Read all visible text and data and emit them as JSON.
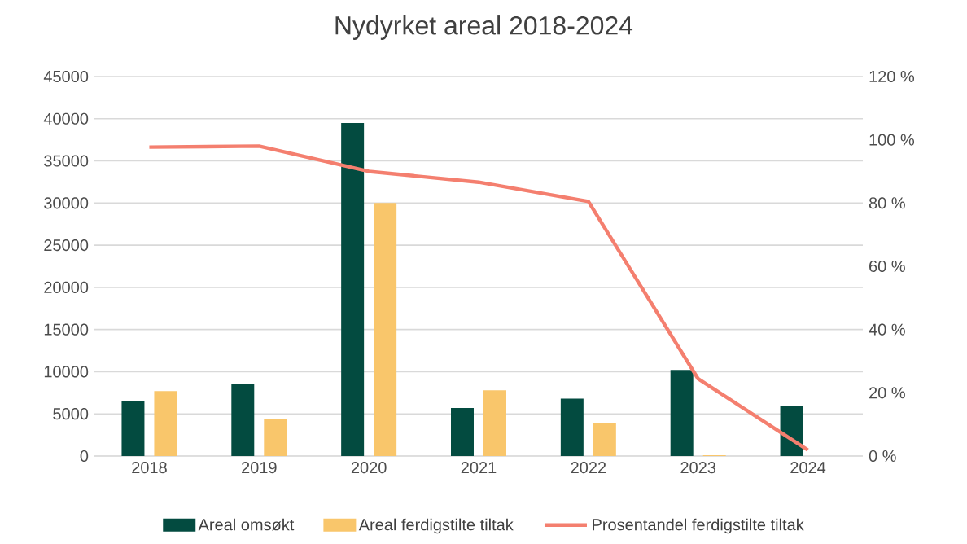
{
  "chart_data": {
    "type": "bar",
    "title": "Nydyrket areal 2018-2024",
    "categories": [
      "2018",
      "2019",
      "2020",
      "2021",
      "2022",
      "2023",
      "2024"
    ],
    "series": [
      {
        "name": "Areal omsøkt",
        "color": "#034b40",
        "values": [
          6500,
          8600,
          39500,
          5700,
          6800,
          10200,
          5900
        ]
      },
      {
        "name": "Areal ferdigstilte tiltak",
        "color": "#f9c66b",
        "values": [
          7700,
          4400,
          30000,
          7800,
          3900,
          100,
          null
        ]
      },
      {
        "name": "Prosentandel ferdigstilte tiltak",
        "type": "line",
        "axis": "y2",
        "color": "#f47f6f",
        "values": [
          97.7,
          98,
          90,
          86.6,
          80.5,
          24.4,
          1.9
        ]
      }
    ],
    "ylim": [
      0,
      45000
    ],
    "yticks": [
      0,
      5000,
      10000,
      15000,
      20000,
      25000,
      30000,
      35000,
      40000,
      45000
    ],
    "y2lim": [
      0,
      120
    ],
    "y2ticks": [
      {
        "value": 0,
        "label": "0 %"
      },
      {
        "value": 20,
        "label": "20 %"
      },
      {
        "value": 40,
        "label": "40 %"
      },
      {
        "value": 60,
        "label": "60 %"
      },
      {
        "value": 80,
        "label": "80 %"
      },
      {
        "value": 100,
        "label": "100 %"
      },
      {
        "value": 120,
        "label": "120 %"
      }
    ],
    "grid": "y",
    "legend": "bottom",
    "marker": "none",
    "line_style": "solid"
  }
}
